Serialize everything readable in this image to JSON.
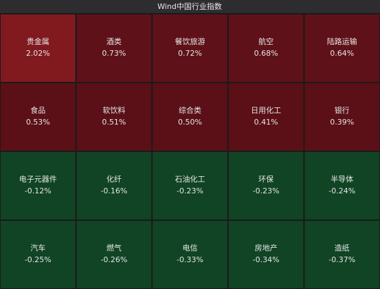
{
  "chart_data": {
    "type": "tiles",
    "title": "Wind中国行业指数",
    "categories": [
      "贵金属",
      "酒类",
      "餐饮旅游",
      "航空",
      "陆路运输",
      "食品",
      "软饮料",
      "综合类",
      "日用化工",
      "银行",
      "电子元器件",
      "化纤",
      "石油化工",
      "环保",
      "半导体",
      "汽车",
      "燃气",
      "电信",
      "房地产",
      "造纸"
    ],
    "values": [
      2.02,
      0.73,
      0.72,
      0.68,
      0.64,
      0.53,
      0.51,
      0.5,
      0.41,
      0.39,
      -0.12,
      -0.16,
      -0.23,
      -0.23,
      -0.24,
      -0.25,
      -0.26,
      -0.33,
      -0.34,
      -0.37
    ],
    "value_labels": [
      "2.02%",
      "0.73%",
      "0.72%",
      "0.68%",
      "0.64%",
      "0.53%",
      "0.51%",
      "0.50%",
      "0.41%",
      "0.39%",
      "-0.12%",
      "-0.16%",
      "-0.23%",
      "-0.23%",
      "-0.24%",
      "-0.25%",
      "-0.26%",
      "-0.33%",
      "-0.34%",
      "-0.37%"
    ],
    "colors": [
      "#801a1f",
      "#5e1118",
      "#5e1118",
      "#5e1118",
      "#5e1118",
      "#5a1016",
      "#5a1016",
      "#5a1016",
      "#5a1016",
      "#5a1016",
      "#104424",
      "#104424",
      "#104424",
      "#104424",
      "#104424",
      "#104424",
      "#104424",
      "#104424",
      "#104424",
      "#104424"
    ],
    "columns": 5
  }
}
